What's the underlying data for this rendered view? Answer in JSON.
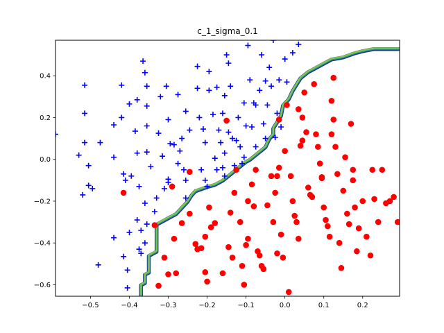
{
  "chart_data": {
    "type": "scatter",
    "title": "c_1_sigma_0.1",
    "xlabel": "",
    "ylabel": "",
    "xlim": [
      -0.59,
      0.295
    ],
    "ylim": [
      -0.655,
      0.57
    ],
    "xticks": [
      -0.5,
      -0.4,
      -0.3,
      -0.2,
      -0.1,
      0.0,
      0.1,
      0.2
    ],
    "xtick_labels": [
      "−0.5",
      "−0.4",
      "−0.3",
      "−0.2",
      "−0.1",
      "0.0",
      "0.1",
      "0.2"
    ],
    "yticks": [
      -0.6,
      -0.4,
      -0.2,
      0.0,
      0.2,
      0.4
    ],
    "ytick_labels": [
      "−0.6",
      "−0.4",
      "−0.2",
      "0.0",
      "0.2",
      "0.4"
    ],
    "grid": false,
    "colors": {
      "class_plus": "#0000ff",
      "class_circle": "#ff0000",
      "contour_outer": "#1f3a8a",
      "contour_mid": "#2a9d8f",
      "contour_inner": "#8bc34a"
    },
    "series": [
      {
        "marker": "plus",
        "color": "#0000ff",
        "points": [
          [
            -0.59,
            0.12
          ],
          [
            -0.53,
            0.02
          ],
          [
            -0.515,
            0.355
          ],
          [
            -0.515,
            0.22
          ],
          [
            -0.515,
            0.08
          ],
          [
            -0.505,
            -0.03
          ],
          [
            -0.52,
            -0.17
          ],
          [
            -0.505,
            -0.125
          ],
          [
            -0.495,
            -0.14
          ],
          [
            -0.48,
            -0.505
          ],
          [
            -0.475,
            0.08
          ],
          [
            -0.44,
            0.165
          ],
          [
            -0.44,
            0.01
          ],
          [
            -0.44,
            -0.375
          ],
          [
            -0.42,
            0.355
          ],
          [
            -0.42,
            0.2
          ],
          [
            -0.415,
            -0.07
          ],
          [
            -0.41,
            -0.1
          ],
          [
            -0.415,
            -0.465
          ],
          [
            -0.405,
            -0.53
          ],
          [
            -0.4,
            0.265
          ],
          [
            -0.4,
            -0.35
          ],
          [
            -0.405,
            -0.615
          ],
          [
            -0.395,
            -0.08
          ],
          [
            -0.385,
            0.135
          ],
          [
            -0.38,
            0.285
          ],
          [
            -0.38,
            0.03
          ],
          [
            -0.375,
            -0.13
          ],
          [
            -0.38,
            -0.29
          ],
          [
            -0.375,
            -0.43
          ],
          [
            -0.37,
            -0.34
          ],
          [
            -0.37,
            -0.45
          ],
          [
            -0.365,
            0.47
          ],
          [
            -0.36,
            0.415
          ],
          [
            -0.355,
            0.35
          ],
          [
            -0.355,
            0.255
          ],
          [
            -0.355,
            0.16
          ],
          [
            -0.355,
            0.035
          ],
          [
            -0.36,
            -0.21
          ],
          [
            -0.355,
            -0.31
          ],
          [
            -0.36,
            -0.4
          ],
          [
            -0.345,
            -0.035
          ],
          [
            -0.335,
            -0.25
          ],
          [
            -0.33,
            -0.185
          ],
          [
            -0.325,
            0.125
          ],
          [
            -0.32,
            0.3
          ],
          [
            -0.315,
            0.015
          ],
          [
            -0.31,
            -0.14
          ],
          [
            -0.305,
            0.35
          ],
          [
            -0.3,
            0.19
          ],
          [
            -0.3,
            -0.095
          ],
          [
            -0.3,
            -0.11
          ],
          [
            -0.295,
            0.075
          ],
          [
            -0.285,
            0.07
          ],
          [
            -0.275,
            0.31
          ],
          [
            -0.275,
            -0.02
          ],
          [
            -0.27,
            0.04
          ],
          [
            -0.265,
            0.1
          ],
          [
            -0.26,
            -0.05
          ],
          [
            -0.255,
            0.23
          ],
          [
            -0.255,
            -0.1
          ],
          [
            -0.255,
            -0.185
          ],
          [
            -0.245,
            0.14
          ],
          [
            -0.225,
            0.445
          ],
          [
            -0.225,
            0.34
          ],
          [
            -0.22,
            0.2
          ],
          [
            -0.215,
            -0.05
          ],
          [
            -0.21,
            0.145
          ],
          [
            -0.205,
            0.08
          ],
          [
            -0.205,
            -0.1
          ],
          [
            -0.2,
            -0.13
          ],
          [
            -0.195,
            0.42
          ],
          [
            -0.195,
            0.33
          ],
          [
            -0.185,
            0.215
          ],
          [
            -0.18,
            0.005
          ],
          [
            -0.175,
            -0.05
          ],
          [
            -0.175,
            0.345
          ],
          [
            -0.17,
            0.14
          ],
          [
            -0.165,
            0.08
          ],
          [
            -0.16,
            0.22
          ],
          [
            -0.16,
            -0.04
          ],
          [
            -0.155,
            -0.08
          ],
          [
            -0.155,
            0.305
          ],
          [
            -0.155,
            0.03
          ],
          [
            -0.15,
            0.5
          ],
          [
            -0.145,
            0.46
          ],
          [
            -0.145,
            0.13
          ],
          [
            -0.14,
            0.35
          ],
          [
            -0.135,
            0.1
          ],
          [
            -0.13,
            -0.03
          ],
          [
            -0.125,
            0.09
          ],
          [
            -0.12,
            0.2
          ],
          [
            -0.115,
            0.06
          ],
          [
            -0.11,
            -0.02
          ],
          [
            -0.105,
            0.27
          ],
          [
            -0.105,
            0.01
          ],
          [
            -0.1,
            0.16
          ],
          [
            -0.095,
            0.545
          ],
          [
            -0.09,
            0.38
          ],
          [
            -0.085,
            0.155
          ],
          [
            -0.08,
            0.27
          ],
          [
            -0.075,
            0.26
          ],
          [
            -0.075,
            0.06
          ],
          [
            -0.065,
            0.33
          ],
          [
            -0.06,
            0.5
          ],
          [
            -0.055,
            0.17
          ],
          [
            -0.05,
            0.1
          ],
          [
            -0.05,
            0.375
          ],
          [
            -0.045,
            0.26
          ],
          [
            -0.04,
            0.44
          ],
          [
            -0.035,
            0.35
          ],
          [
            -0.03,
            0.57
          ],
          [
            -0.025,
            0.105
          ],
          [
            -0.02,
            0.22
          ],
          [
            -0.015,
            0.38
          ],
          [
            -0.01,
            0.155
          ],
          [
            0.0,
            0.48
          ],
          [
            0.005,
            0.37
          ],
          [
            0.02,
            0.51
          ],
          [
            0.035,
            0.55
          ]
        ]
      },
      {
        "marker": "circle",
        "color": "#ff0000",
        "points": [
          [
            -0.415,
            -0.16
          ],
          [
            -0.335,
            -0.315
          ],
          [
            -0.325,
            -0.605
          ],
          [
            -0.31,
            -0.47
          ],
          [
            -0.29,
            -0.13
          ],
          [
            -0.285,
            -0.38
          ],
          [
            -0.28,
            -0.545
          ],
          [
            -0.245,
            -0.26
          ],
          [
            -0.23,
            -0.405
          ],
          [
            -0.225,
            -0.43
          ],
          [
            -0.215,
            -0.425
          ],
          [
            -0.205,
            -0.37
          ],
          [
            -0.2,
            -0.585
          ],
          [
            -0.195,
            -0.23
          ],
          [
            -0.19,
            -0.325
          ],
          [
            -0.18,
            -0.305
          ],
          [
            -0.16,
            -0.545
          ],
          [
            -0.15,
            0.185
          ],
          [
            -0.145,
            -0.42
          ],
          [
            -0.14,
            -0.255
          ],
          [
            -0.135,
            -0.47
          ],
          [
            -0.13,
            -0.16
          ],
          [
            -0.125,
            -0.05
          ],
          [
            -0.115,
            -0.3
          ],
          [
            -0.11,
            -0.51
          ],
          [
            -0.105,
            -0.6
          ],
          [
            -0.1,
            -0.41
          ],
          [
            -0.095,
            -0.38
          ],
          [
            -0.095,
            -0.2
          ],
          [
            -0.085,
            -0.12
          ],
          [
            -0.08,
            -0.225
          ],
          [
            -0.075,
            -0.05
          ],
          [
            -0.07,
            -0.44
          ],
          [
            -0.065,
            -0.46
          ],
          [
            -0.06,
            -0.51
          ],
          [
            -0.055,
            -0.525
          ],
          [
            -0.045,
            -0.22
          ],
          [
            -0.035,
            -0.08
          ],
          [
            -0.03,
            -0.3
          ],
          [
            -0.025,
            -0.16
          ],
          [
            -0.02,
            -0.45
          ],
          [
            -0.015,
            -0.04
          ],
          [
            -0.01,
            -0.36
          ],
          [
            -0.005,
            -0.47
          ],
          [
            0.005,
            0.26
          ],
          [
            0.01,
            -0.635
          ],
          [
            0.015,
            -0.08
          ],
          [
            0.02,
            -0.2
          ],
          [
            0.025,
            -0.27
          ],
          [
            0.03,
            -0.3
          ],
          [
            0.035,
            -0.38
          ],
          [
            0.04,
            0.065
          ],
          [
            0.045,
            0.2
          ],
          [
            0.05,
            0.32
          ],
          [
            0.055,
            0.13
          ],
          [
            0.06,
            -0.135
          ],
          [
            0.065,
            -0.17
          ],
          [
            0.07,
            -0.18
          ],
          [
            0.075,
            0.36
          ],
          [
            0.08,
            0.12
          ],
          [
            0.085,
            0.06
          ],
          [
            0.09,
            -0.02
          ],
          [
            0.095,
            -0.09
          ],
          [
            0.1,
            -0.23
          ],
          [
            0.105,
            -0.29
          ],
          [
            0.11,
            -0.32
          ],
          [
            0.115,
            -0.37
          ],
          [
            0.12,
            0.28
          ],
          [
            0.125,
            0.19
          ],
          [
            0.13,
            0.06
          ],
          [
            0.135,
            -0.07
          ],
          [
            0.14,
            -0.4
          ],
          [
            0.145,
            -0.52
          ],
          [
            0.15,
            -0.15
          ],
          [
            0.155,
            0.01
          ],
          [
            0.16,
            -0.26
          ],
          [
            0.165,
            -0.31
          ],
          [
            0.17,
            0.17
          ],
          [
            0.175,
            -0.1
          ],
          [
            0.18,
            -0.23
          ],
          [
            0.185,
            -0.44
          ],
          [
            0.19,
            -0.33
          ],
          [
            0.2,
            -0.2
          ],
          [
            0.21,
            -0.37
          ],
          [
            0.22,
            -0.46
          ],
          [
            0.225,
            -0.05
          ],
          [
            0.23,
            -0.19
          ],
          [
            0.24,
            -0.3
          ],
          [
            0.25,
            -0.05
          ],
          [
            0.26,
            -0.21
          ],
          [
            0.27,
            -0.2
          ],
          [
            0.28,
            -0.18
          ],
          [
            0.29,
            -0.3
          ],
          [
            0.125,
            0.39
          ],
          [
            0.12,
            0.12
          ],
          [
            0.095,
            -0.085
          ],
          [
            0.175,
            -0.05
          ],
          [
            0.045,
            0.09
          ],
          [
            0.0,
            0.04
          ],
          [
            -0.015,
            0.19
          ],
          [
            0.035,
            0.24
          ],
          [
            -0.02,
            -0.08
          ],
          [
            -0.3,
            -0.55
          ],
          [
            -0.265,
            -0.305
          ],
          [
            -0.245,
            -0.06
          ],
          [
            -0.205,
            -0.54
          ]
        ]
      }
    ],
    "decision_boundary": [
      [
        -0.37,
        -0.655
      ],
      [
        -0.37,
        -0.6
      ],
      [
        -0.36,
        -0.59
      ],
      [
        -0.36,
        -0.55
      ],
      [
        -0.35,
        -0.54
      ],
      [
        -0.35,
        -0.46
      ],
      [
        -0.34,
        -0.45
      ],
      [
        -0.33,
        -0.44
      ],
      [
        -0.33,
        -0.31
      ],
      [
        -0.32,
        -0.3
      ],
      [
        -0.31,
        -0.29
      ],
      [
        -0.3,
        -0.28
      ],
      [
        -0.29,
        -0.27
      ],
      [
        -0.28,
        -0.26
      ],
      [
        -0.27,
        -0.24
      ],
      [
        -0.26,
        -0.22
      ],
      [
        -0.25,
        -0.2
      ],
      [
        -0.24,
        -0.17
      ],
      [
        -0.23,
        -0.15
      ],
      [
        -0.2,
        -0.13
      ],
      [
        -0.18,
        -0.12
      ],
      [
        -0.16,
        -0.1
      ],
      [
        -0.14,
        -0.07
      ],
      [
        -0.12,
        -0.04
      ],
      [
        -0.1,
        -0.01
      ],
      [
        -0.09,
        0.0
      ],
      [
        -0.07,
        0.03
      ],
      [
        -0.05,
        0.06
      ],
      [
        -0.04,
        0.1
      ],
      [
        -0.03,
        0.12
      ],
      [
        -0.03,
        0.15
      ],
      [
        -0.02,
        0.18
      ],
      [
        -0.01,
        0.21
      ],
      [
        -0.005,
        0.26
      ],
      [
        0.01,
        0.29
      ],
      [
        0.02,
        0.33
      ],
      [
        0.03,
        0.36
      ],
      [
        0.04,
        0.39
      ],
      [
        0.06,
        0.42
      ],
      [
        0.08,
        0.44
      ],
      [
        0.1,
        0.46
      ],
      [
        0.12,
        0.48
      ],
      [
        0.15,
        0.49
      ],
      [
        0.18,
        0.51
      ],
      [
        0.2,
        0.52
      ],
      [
        0.23,
        0.53
      ],
      [
        0.295,
        0.53
      ]
    ]
  }
}
